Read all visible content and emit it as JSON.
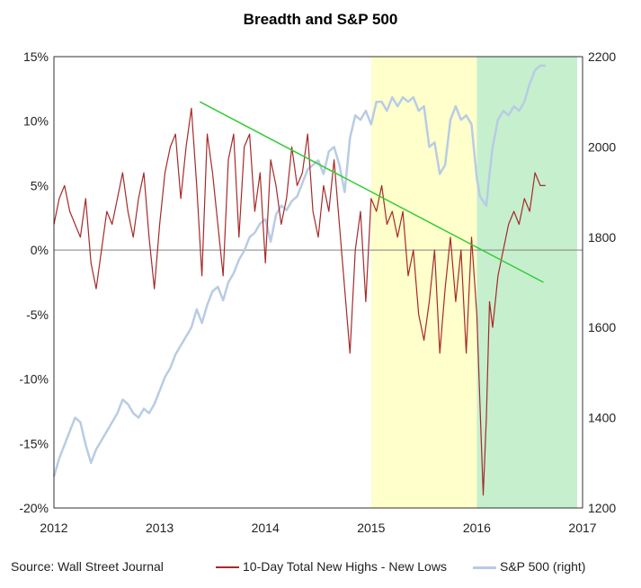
{
  "chart_data": {
    "type": "line",
    "title": "Breadth and S&P 500",
    "source": "Source: Wall Street Journal",
    "x_ticks": [
      "2012",
      "2013",
      "2014",
      "2015",
      "2016",
      "2017"
    ],
    "xlim": [
      2012.0,
      2017.0
    ],
    "y_left": {
      "ticks": [
        "15%",
        "10%",
        "5%",
        "0%",
        "-5%",
        "-10%",
        "-15%",
        "-20%"
      ],
      "range": [
        -20,
        15
      ]
    },
    "y_right": {
      "ticks": [
        "2200",
        "2000",
        "1800",
        "1600",
        "1400",
        "1200"
      ],
      "range": [
        1200,
        2200
      ]
    },
    "shaded_regions": [
      {
        "from": 2015.0,
        "to": 2016.0,
        "color": "#ffffcc"
      },
      {
        "from": 2016.0,
        "to": 2016.95,
        "color": "#c6efce"
      }
    ],
    "series": [
      {
        "name": "10-Day Total New Highs - New Lows",
        "axis": "left",
        "color": "#a52a2a",
        "x": [
          2012.0,
          2012.05,
          2012.1,
          2012.15,
          2012.2,
          2012.25,
          2012.3,
          2012.35,
          2012.4,
          2012.45,
          2012.5,
          2012.55,
          2012.6,
          2012.65,
          2012.7,
          2012.75,
          2012.8,
          2012.85,
          2012.9,
          2012.95,
          2013.0,
          2013.05,
          2013.1,
          2013.15,
          2013.2,
          2013.25,
          2013.3,
          2013.35,
          2013.4,
          2013.45,
          2013.5,
          2013.55,
          2013.6,
          2013.65,
          2013.7,
          2013.75,
          2013.8,
          2013.85,
          2013.9,
          2013.95,
          2014.0,
          2014.05,
          2014.1,
          2014.15,
          2014.2,
          2014.25,
          2014.3,
          2014.35,
          2014.4,
          2014.45,
          2014.5,
          2014.55,
          2014.6,
          2014.65,
          2014.7,
          2014.75,
          2014.8,
          2014.85,
          2014.9,
          2014.95,
          2015.0,
          2015.05,
          2015.1,
          2015.15,
          2015.2,
          2015.25,
          2015.3,
          2015.35,
          2015.4,
          2015.45,
          2015.5,
          2015.55,
          2015.6,
          2015.65,
          2015.7,
          2015.75,
          2015.8,
          2015.85,
          2015.9,
          2015.95,
          2016.0,
          2016.03,
          2016.06,
          2016.09,
          2016.12,
          2016.15,
          2016.2,
          2016.25,
          2016.3,
          2016.35,
          2016.4,
          2016.45,
          2016.5,
          2016.55,
          2016.6,
          2016.65
        ],
        "y": [
          2,
          4,
          5,
          3,
          2,
          1,
          4,
          -1,
          -3,
          0,
          3,
          2,
          4,
          6,
          3,
          1,
          4,
          6,
          1,
          -3,
          2,
          6,
          8,
          9,
          4,
          8,
          11,
          5,
          -2,
          9,
          6,
          2,
          -2,
          7,
          9,
          1,
          8,
          9,
          3,
          6,
          -1,
          7,
          5,
          2,
          4,
          8,
          5,
          6,
          9,
          3,
          1,
          5,
          3,
          7,
          2,
          -3,
          -8,
          0,
          3,
          -4,
          4,
          3,
          5,
          2,
          3,
          1,
          3,
          -2,
          0,
          -5,
          -7,
          -4,
          0,
          -8,
          -3,
          1,
          -4,
          0,
          -8,
          1,
          -5,
          -12,
          -19,
          -13,
          -4,
          -6,
          -2,
          0,
          2,
          3,
          2,
          4,
          3,
          6,
          5,
          5
        ]
      },
      {
        "name": "S&P 500 (right)",
        "axis": "right",
        "color": "#b8cce4",
        "x": [
          2012.0,
          2012.05,
          2012.1,
          2012.15,
          2012.2,
          2012.25,
          2012.3,
          2012.35,
          2012.4,
          2012.45,
          2012.5,
          2012.55,
          2012.6,
          2012.65,
          2012.7,
          2012.75,
          2012.8,
          2012.85,
          2012.9,
          2012.95,
          2013.0,
          2013.05,
          2013.1,
          2013.15,
          2013.2,
          2013.25,
          2013.3,
          2013.35,
          2013.4,
          2013.45,
          2013.5,
          2013.55,
          2013.6,
          2013.65,
          2013.7,
          2013.75,
          2013.8,
          2013.85,
          2013.9,
          2013.95,
          2014.0,
          2014.05,
          2014.1,
          2014.15,
          2014.2,
          2014.25,
          2014.3,
          2014.35,
          2014.4,
          2014.45,
          2014.5,
          2014.55,
          2014.6,
          2014.65,
          2014.7,
          2014.75,
          2014.8,
          2014.85,
          2014.9,
          2014.95,
          2015.0,
          2015.05,
          2015.1,
          2015.15,
          2015.2,
          2015.25,
          2015.3,
          2015.35,
          2015.4,
          2015.45,
          2015.5,
          2015.55,
          2015.6,
          2015.65,
          2015.7,
          2015.75,
          2015.8,
          2015.85,
          2015.9,
          2015.95,
          2016.0,
          2016.03,
          2016.06,
          2016.09,
          2016.12,
          2016.15,
          2016.2,
          2016.25,
          2016.3,
          2016.35,
          2016.4,
          2016.45,
          2016.5,
          2016.55,
          2016.6,
          2016.65
        ],
        "y": [
          1270,
          1310,
          1340,
          1370,
          1400,
          1390,
          1340,
          1300,
          1330,
          1350,
          1370,
          1390,
          1410,
          1440,
          1430,
          1410,
          1400,
          1420,
          1410,
          1430,
          1460,
          1490,
          1510,
          1540,
          1560,
          1580,
          1600,
          1640,
          1610,
          1650,
          1680,
          1690,
          1660,
          1700,
          1720,
          1750,
          1770,
          1800,
          1810,
          1830,
          1840,
          1790,
          1850,
          1870,
          1860,
          1880,
          1890,
          1920,
          1950,
          1960,
          1970,
          1940,
          1990,
          2000,
          1960,
          1900,
          2020,
          2070,
          2060,
          2080,
          2050,
          2100,
          2100,
          2080,
          2110,
          2090,
          2110,
          2100,
          2110,
          2080,
          2090,
          2000,
          2010,
          1940,
          1960,
          2060,
          2090,
          2060,
          2070,
          2050,
          1930,
          1890,
          1880,
          1870,
          1940,
          2000,
          2060,
          2080,
          2070,
          2090,
          2080,
          2100,
          2140,
          2170,
          2180,
          2180
        ]
      }
    ],
    "trendline": {
      "x": [
        2013.38,
        2016.63
      ],
      "y": [
        11.5,
        -2.5
      ],
      "color": "#33cc33"
    }
  }
}
